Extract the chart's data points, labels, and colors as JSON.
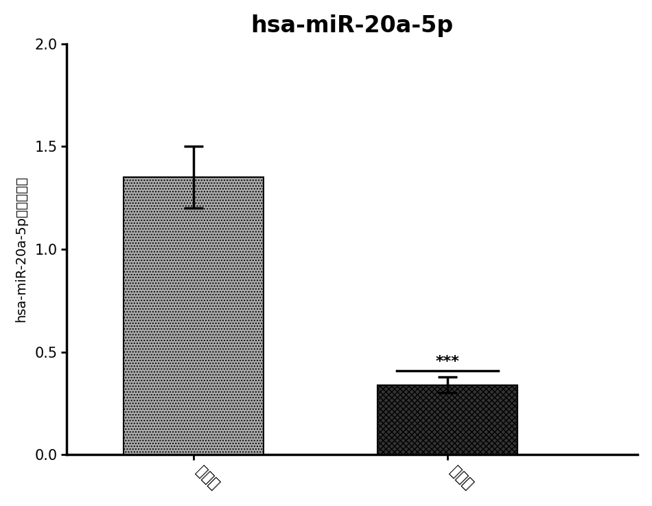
{
  "title": "hsa-miR-20a-5p",
  "title_fontsize": 24,
  "title_fontweight": "bold",
  "ylabel_latin": "hsa-miR-20a-5p",
  "ylabel_chinese": "相对表达量",
  "ylabel_fontsize": 14,
  "categories": [
    "正常组",
    "病例组"
  ],
  "values": [
    1.35,
    0.34
  ],
  "errors": [
    0.15,
    0.04
  ],
  "ylim": [
    0,
    2.0
  ],
  "yticks": [
    0.0,
    0.5,
    1.0,
    1.5,
    2.0
  ],
  "bar1_facecolor": "#aaaaaa",
  "bar2_facecolor": "#333333",
  "bar1_hatch": "....",
  "bar2_hatch": "xxxx",
  "background_color": "#ffffff",
  "annotation_text": "***",
  "annotation_fontsize": 16,
  "tick_label_fontsize": 15,
  "bar_width": 0.55,
  "error_capsize": 10,
  "error_linewidth": 2.5,
  "spine_linewidth": 2.5
}
